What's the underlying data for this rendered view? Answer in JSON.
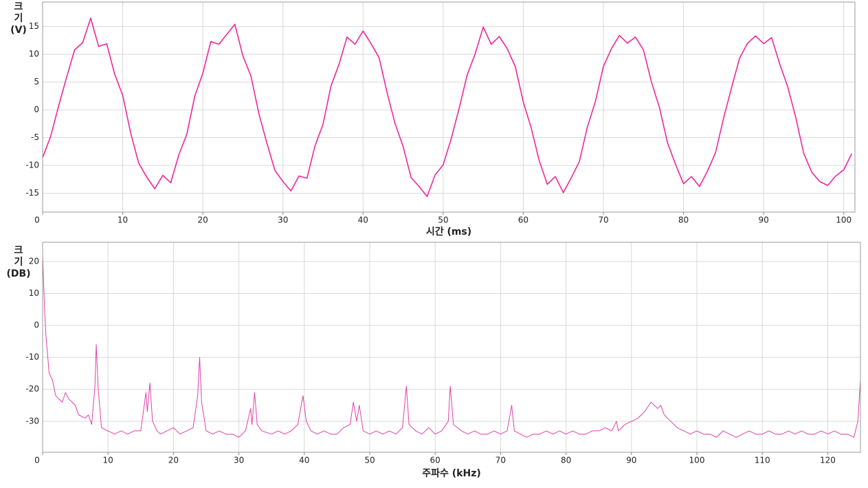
{
  "chart_data": [
    {
      "type": "line",
      "ylabel_lines": [
        "크",
        "기",
        "(V)"
      ],
      "xlabel": "시간 (ms)",
      "x": [
        0,
        1,
        2,
        3,
        4,
        5,
        6,
        7,
        8,
        9,
        10,
        11,
        12,
        13,
        14,
        15,
        16,
        17,
        18,
        19,
        20,
        21,
        22,
        23,
        24,
        25,
        26,
        27,
        28,
        29,
        30,
        31,
        32,
        33,
        34,
        35,
        36,
        37,
        38,
        39,
        40,
        41,
        42,
        43,
        44,
        45,
        46,
        47,
        48,
        49,
        50,
        51,
        52,
        53,
        54,
        55,
        56,
        57,
        58,
        59,
        60,
        61,
        62,
        63,
        64,
        65,
        66,
        67,
        68,
        69,
        70,
        71,
        72,
        73,
        74,
        75,
        76,
        77,
        78,
        79,
        80,
        81,
        82,
        83,
        84,
        85,
        86,
        87,
        88,
        89,
        90,
        91,
        92,
        93,
        94,
        95,
        96,
        97,
        98,
        99,
        100,
        101
      ],
      "series": [
        {
          "color": "#f0259b",
          "values": [
            -8.6,
            -4.8,
            0.7,
            5.9,
            10.8,
            12.1,
            16.5,
            11.4,
            11.9,
            6.4,
            2.6,
            -4.2,
            -9.6,
            -12.1,
            -14.2,
            -11.8,
            -13.1,
            -8.1,
            -4.4,
            2.5,
            6.6,
            12.3,
            11.8,
            13.6,
            15.4,
            9.7,
            6.1,
            -0.7,
            -6.0,
            -10.9,
            -12.9,
            -14.6,
            -11.9,
            -12.3,
            -6.5,
            -2.6,
            4.3,
            8.2,
            13.1,
            11.8,
            14.2,
            11.9,
            9.4,
            3.1,
            -2.5,
            -6.6,
            -12.2,
            -13.8,
            -15.6,
            -11.7,
            -9.9,
            -5.2,
            0.3,
            6.3,
            10.1,
            14.9,
            11.8,
            13.2,
            11.0,
            7.8,
            1.4,
            -3.3,
            -9.2,
            -13.4,
            -12.0,
            -14.9,
            -12.2,
            -9.3,
            -3.1,
            1.5,
            7.8,
            11.0,
            13.4,
            12.0,
            13.1,
            10.8,
            5.0,
            0.4,
            -5.9,
            -9.8,
            -13.3,
            -12.0,
            -13.8,
            -11.0,
            -7.7,
            -1.5,
            4.0,
            9.3,
            12.0,
            13.3,
            11.9,
            13.0,
            8.3,
            4.2,
            -1.3,
            -7.8,
            -11.2,
            -12.9,
            -13.6,
            -11.9,
            -10.8,
            -7.9
          ]
        }
      ],
      "xlim": [
        0,
        101.4
      ],
      "ylim": [
        -18.4,
        19.4
      ],
      "xticks": [
        0,
        10,
        20,
        30,
        40,
        50,
        60,
        70,
        80,
        90,
        100
      ],
      "yticks": [
        -15,
        -10,
        -5,
        0,
        5,
        10,
        15
      ],
      "grid": true
    },
    {
      "type": "line",
      "ylabel_lines": [
        "크",
        "기",
        "(DB)"
      ],
      "xlabel": "주파수 (kHz)",
      "x": [
        0,
        0.3,
        0.5,
        1,
        1.5,
        2,
        3,
        3.5,
        4,
        5,
        5.5,
        6.5,
        7,
        7.5,
        8,
        8.2,
        8.5,
        9,
        10,
        11,
        12,
        13,
        14,
        15,
        15.8,
        16,
        16.4,
        16.8,
        17.5,
        18,
        19,
        20,
        21,
        22,
        23,
        23.7,
        24,
        24.3,
        25,
        26,
        27,
        28,
        29,
        30,
        31,
        31.8,
        32,
        32.4,
        32.8,
        33.5,
        35,
        36,
        37,
        38,
        39,
        39.8,
        40.3,
        41,
        42,
        43,
        44,
        45,
        46,
        47,
        47.5,
        48,
        48.4,
        49,
        50,
        51,
        52,
        53,
        54,
        55,
        55.6,
        56,
        57,
        58,
        59,
        60,
        61,
        62,
        62.3,
        62.8,
        64,
        65,
        66,
        67,
        68,
        69,
        70,
        71,
        71.7,
        72.1,
        73,
        74,
        75,
        76,
        77,
        78,
        79,
        80,
        81,
        82,
        83,
        84,
        85,
        86,
        87,
        87.7,
        88,
        89,
        90,
        91,
        92,
        93,
        94,
        94.5,
        95,
        96,
        97,
        98,
        99,
        100,
        101,
        102,
        103,
        104,
        105,
        106,
        107,
        108,
        109,
        110,
        111,
        112,
        113,
        114,
        115,
        116,
        117,
        118,
        119,
        120,
        121,
        122,
        123,
        124,
        124.6,
        125
      ],
      "series": [
        {
          "color": "#e040a8",
          "values": [
            22,
            5,
            -3,
            -15,
            -17,
            -22,
            -24,
            -21,
            -23,
            -25,
            -28,
            -29,
            -28,
            -31,
            -19,
            -6,
            -20,
            -32,
            -33,
            -34,
            -33,
            -34,
            -33,
            -33,
            -21,
            -27,
            -18,
            -30,
            -33,
            -34,
            -33,
            -32,
            -34,
            -33,
            -32,
            -22,
            -10,
            -24,
            -33,
            -34,
            -33,
            -34,
            -34,
            -35,
            -33,
            -26,
            -31,
            -21,
            -31,
            -33,
            -34,
            -33,
            -34,
            -33,
            -31,
            -22,
            -30,
            -33,
            -34,
            -33,
            -34,
            -34,
            -32,
            -31,
            -24,
            -30,
            -25,
            -33,
            -34,
            -33,
            -34,
            -33,
            -34,
            -32,
            -19,
            -31,
            -33,
            -34,
            -32,
            -34,
            -33,
            -30,
            -19,
            -31,
            -33,
            -34,
            -33,
            -34,
            -34,
            -33,
            -34,
            -33,
            -25,
            -33,
            -34,
            -35,
            -34,
            -34,
            -33,
            -34,
            -33,
            -34,
            -33,
            -34,
            -34,
            -33,
            -33,
            -32,
            -33,
            -30,
            -33,
            -31,
            -30,
            -29,
            -27,
            -24,
            -26,
            -25,
            -28,
            -30,
            -32,
            -33,
            -34,
            -33,
            -34,
            -34,
            -35,
            -33,
            -34,
            -35,
            -34,
            -33,
            -34,
            -34,
            -33,
            -34,
            -34,
            -33,
            -34,
            -33,
            -34,
            -34,
            -33,
            -34,
            -33,
            -34,
            -34,
            -35,
            -30,
            -17
          ]
        }
      ],
      "xlim": [
        0,
        125
      ],
      "ylim": [
        -39.7,
        26
      ],
      "xticks": [
        0,
        10,
        20,
        30,
        40,
        50,
        60,
        70,
        80,
        90,
        100,
        110,
        120
      ],
      "yticks": [
        -30,
        -20,
        -10,
        0,
        10,
        20
      ],
      "grid": true
    }
  ]
}
